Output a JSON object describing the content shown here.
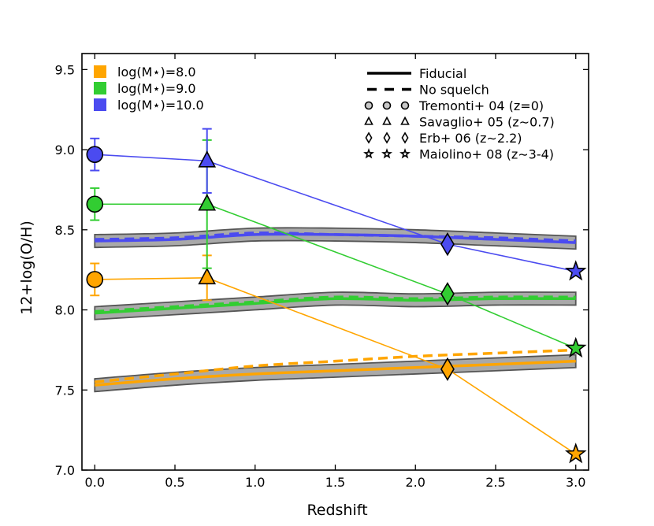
{
  "chart_data": {
    "type": "line",
    "xlabel": "Redshift",
    "ylabel": "12+log(O/H)",
    "xlim": [
      -0.08,
      3.08
    ],
    "ylim": [
      7.0,
      9.6
    ],
    "xticks": [
      0.0,
      0.5,
      1.0,
      1.5,
      2.0,
      2.5,
      3.0
    ],
    "xtick_labels": [
      "0.0",
      "0.5",
      "1.0",
      "1.5",
      "2.0",
      "2.5",
      "3.0"
    ],
    "yticks": [
      7.0,
      7.5,
      8.0,
      8.5,
      9.0,
      9.5
    ],
    "ytick_labels": [
      "7.0",
      "7.5",
      "8.0",
      "8.5",
      "9.0",
      "9.5"
    ],
    "mass_legend": [
      {
        "label": "log(M⋆)=8.0",
        "color": "#ffa500"
      },
      {
        "label": "log(M⋆)=9.0",
        "color": "#32cd32"
      },
      {
        "label": "log(M⋆)=10.0",
        "color": "#4b4bf0"
      }
    ],
    "style_legend": [
      {
        "label": "Fiducial",
        "type": "solid"
      },
      {
        "label": "No squelch",
        "type": "dashed"
      },
      {
        "label": "Tremonti+ 04 (z=0)",
        "type": "circle"
      },
      {
        "label": "Savaglio+ 05 (z∼0.7)",
        "type": "triangle"
      },
      {
        "label": "Erb+ 06 (z∼2.2)",
        "type": "diamond"
      },
      {
        "label": "Maiolino+ 08 (z∼3-4)",
        "type": "star"
      }
    ],
    "series": [
      {
        "name": "log(M⋆)=8.0",
        "color": "#ffa500",
        "model_z": [
          0.0,
          0.5,
          1.0,
          1.5,
          2.0,
          2.5,
          3.0
        ],
        "fiducial": [
          7.53,
          7.57,
          7.6,
          7.62,
          7.64,
          7.66,
          7.68
        ],
        "no_squelch": [
          7.55,
          7.6,
          7.65,
          7.68,
          7.71,
          7.73,
          7.75
        ],
        "band_halfwidth": 0.04,
        "obs_z": [
          0.0,
          0.7,
          2.2,
          3.0
        ],
        "obs_y": [
          8.19,
          8.2,
          7.63,
          7.1
        ],
        "obs_err": [
          0.1,
          0.14,
          0,
          0
        ]
      },
      {
        "name": "log(M⋆)=9.0",
        "color": "#32cd32",
        "model_z": [
          0.0,
          0.5,
          1.0,
          1.5,
          2.0,
          2.5,
          3.0
        ],
        "fiducial": [
          7.98,
          8.01,
          8.04,
          8.07,
          8.06,
          8.07,
          8.07
        ],
        "no_squelch": [
          7.99,
          8.02,
          8.05,
          8.08,
          8.07,
          8.08,
          8.08
        ],
        "band_halfwidth": 0.04,
        "obs_z": [
          0.0,
          0.7,
          2.2,
          3.0
        ],
        "obs_y": [
          8.66,
          8.66,
          8.1,
          7.76
        ],
        "obs_err": [
          0.1,
          0.4,
          0,
          0
        ]
      },
      {
        "name": "log(M⋆)=10.0",
        "color": "#4b4bf0",
        "model_z": [
          0.0,
          0.5,
          1.0,
          1.5,
          2.0,
          2.5,
          3.0
        ],
        "fiducial": [
          8.43,
          8.44,
          8.47,
          8.47,
          8.46,
          8.44,
          8.42
        ],
        "no_squelch": [
          8.44,
          8.45,
          8.48,
          8.47,
          8.46,
          8.45,
          8.43
        ],
        "band_halfwidth": 0.04,
        "obs_z": [
          0.0,
          0.7,
          2.2,
          3.0
        ],
        "obs_y": [
          8.97,
          8.93,
          8.41,
          8.24
        ],
        "obs_err": [
          0.1,
          0.2,
          0,
          0
        ]
      }
    ]
  }
}
